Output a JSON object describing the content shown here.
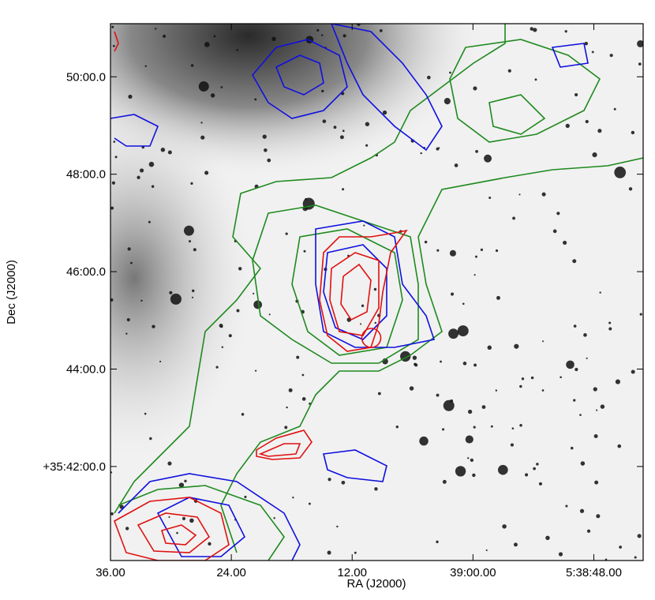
{
  "chart_data": {
    "type": "image",
    "xlabel": "RA (J2000)",
    "ylabel": "Dec (J2000)",
    "xlim": [
      96,
      43.1
    ],
    "ylim": [
      40.07,
      51.09
    ],
    "xticks": [
      {
        "value": 96,
        "label": "36.00"
      },
      {
        "value": 84,
        "label": "24.00"
      },
      {
        "value": 72,
        "label": "12.00"
      },
      {
        "value": 60,
        "label": "39:00.00"
      },
      {
        "value": 48,
        "label": "5:38:48.00"
      }
    ],
    "yticks": [
      {
        "value": 50,
        "label": "50:00.0"
      },
      {
        "value": 48,
        "label": "48:00.0"
      },
      {
        "value": 46,
        "label": "46:00.0"
      },
      {
        "value": 44,
        "label": "44:00.0"
      },
      {
        "value": 42,
        "label": "+35:42:00.0"
      }
    ]
  }
}
